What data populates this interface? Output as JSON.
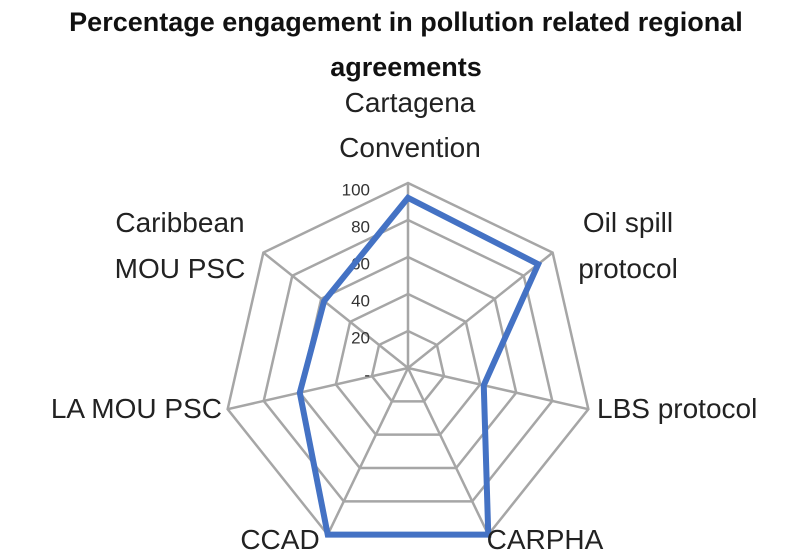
{
  "chart_data": {
    "type": "radar",
    "title": "Percentage engagement in pollution related regional agreements",
    "categories": [
      "Cartagena Convention",
      "Oil spill protocol",
      "LBS protocol",
      "CARPHA",
      "CCAD",
      "LA MOU PSC",
      "Caribbean MOU PSC"
    ],
    "values": [
      92,
      90,
      42,
      100,
      100,
      60,
      58
    ],
    "color": "#4472c4",
    "ylim": [
      0,
      100
    ],
    "yticks": [
      {
        "value": 0,
        "label": "-"
      },
      20,
      40,
      60,
      80,
      100
    ],
    "grid": true
  }
}
